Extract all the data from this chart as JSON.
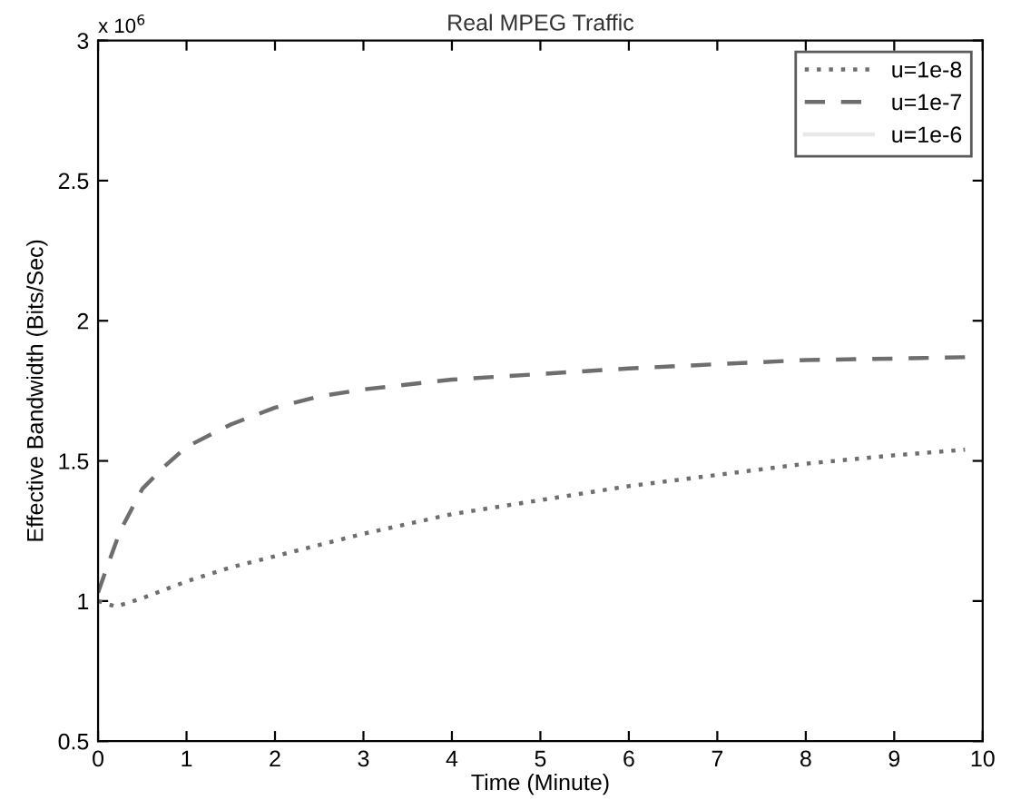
{
  "chart_data": {
    "type": "line",
    "title": "Real MPEG Traffic",
    "xlabel": "Time (Minute)",
    "ylabel": "Effective Bandwidth (Bits/Sec)",
    "annotations": [
      "x 10$^{6}$"
    ],
    "xlim": [
      0,
      10
    ],
    "xticks": [
      0,
      1,
      2,
      3,
      4,
      5,
      6,
      7,
      8,
      9,
      10
    ],
    "ylim": [
      0.5,
      3
    ],
    "yticks": [
      0.5,
      1,
      1.5,
      2,
      2.5,
      3
    ],
    "grid": false,
    "legend": "top right",
    "series": [
      {
        "name": "u=1e-8",
        "color": "#6e6e6e",
        "line_style": "dotted",
        "x": [
          0,
          0.2,
          0.5,
          1,
          1.5,
          2,
          3,
          4,
          5,
          6,
          7,
          8,
          9,
          9.8
        ],
        "values": [
          1.0,
          0.98,
          1.01,
          1.07,
          1.12,
          1.16,
          1.24,
          1.31,
          1.36,
          1.41,
          1.45,
          1.49,
          1.52,
          1.54
        ]
      },
      {
        "name": "u=1e-7",
        "color": "#6e6e6e",
        "line_style": "dashed",
        "x": [
          0,
          0.1,
          0.25,
          0.5,
          0.75,
          1,
          1.5,
          2,
          2.5,
          3,
          4,
          5,
          6,
          7,
          8,
          9,
          9.8
        ],
        "values": [
          1.03,
          1.12,
          1.25,
          1.4,
          1.48,
          1.55,
          1.63,
          1.69,
          1.73,
          1.755,
          1.79,
          1.81,
          1.83,
          1.845,
          1.86,
          1.865,
          1.87
        ]
      },
      {
        "name": "u=1e-6",
        "color": "#e8e8e8",
        "line_style": "solid"
      }
    ]
  }
}
